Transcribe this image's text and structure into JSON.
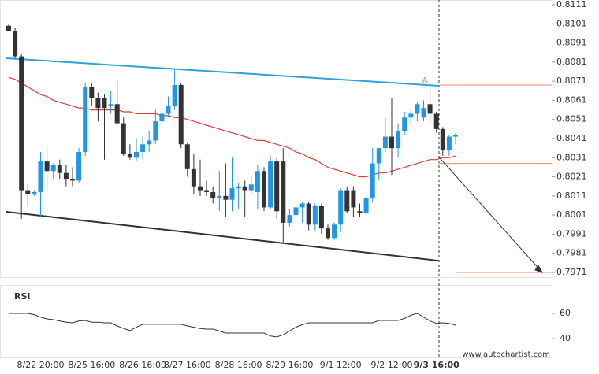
{
  "chart_data": [
    {
      "type": "candlestick",
      "categories": [
        null,
        null,
        null,
        null,
        null,
        "8/22 20:00",
        null,
        null,
        null,
        null,
        null,
        null,
        null,
        "8/25 16:00",
        null,
        null,
        null,
        null,
        null,
        null,
        null,
        "8/26 16:00",
        null,
        null,
        null,
        null,
        null,
        null,
        "8/27 16:00",
        null,
        null,
        null,
        null,
        null,
        null,
        null,
        "8/28 16:00",
        null,
        null,
        null,
        null,
        null,
        null,
        null,
        "8/29 16:00",
        null,
        null,
        null,
        null,
        null,
        null,
        null,
        "9/1 12:00",
        null,
        null,
        null,
        null,
        null,
        null,
        null,
        "9/2 12:00",
        null,
        null,
        null,
        null,
        null,
        null,
        "9/3 16:00",
        null,
        null,
        null
      ],
      "open": [
        0.81,
        0.8097,
        0.8084,
        0.8014,
        0.8012,
        0.8013,
        0.8029,
        0.8024,
        0.8027,
        0.8023,
        0.802,
        0.8019,
        0.8034,
        0.8068,
        0.8062,
        0.8062,
        0.8058,
        0.8059,
        0.8049,
        0.8033,
        0.8031,
        0.8034,
        0.8038,
        0.804,
        0.805,
        0.8054,
        0.8058,
        0.8069,
        0.8038,
        0.8025,
        0.8016,
        0.8014,
        0.8013,
        0.801,
        0.8011,
        0.8009,
        0.8015,
        0.8016,
        0.8014,
        0.8013,
        0.8024,
        0.8005,
        0.8029,
        0.8029,
        0.7997,
        0.8001,
        0.8005,
        0.8007,
        0.7996,
        0.8006,
        0.7994,
        0.7989,
        0.7996,
        0.8014,
        0.8014,
        0.8003,
        0.8002,
        0.801,
        0.8028,
        0.8036,
        0.8042,
        0.8036,
        0.8045,
        0.8052,
        0.8054,
        0.8052,
        0.8059,
        0.8054,
        0.8046,
        0.8035,
        0.8042
      ],
      "high": [
        0.8101,
        0.8099,
        0.8085,
        0.8017,
        0.8014,
        0.8034,
        0.8037,
        0.8028,
        0.803,
        0.8027,
        0.8026,
        0.8036,
        0.807,
        0.807,
        0.8065,
        0.8064,
        0.8066,
        0.8071,
        0.8052,
        0.8038,
        0.8041,
        0.8042,
        0.8045,
        0.8056,
        0.8062,
        0.8063,
        0.8077,
        0.807,
        0.8039,
        0.8033,
        0.803,
        0.8019,
        0.8016,
        0.8024,
        0.8028,
        0.8031,
        0.8018,
        0.8019,
        0.8021,
        0.8027,
        0.8026,
        0.8032,
        0.8031,
        0.8036,
        0.8004,
        0.8007,
        0.8008,
        0.8008,
        0.8007,
        0.8007,
        0.7996,
        0.7997,
        0.8015,
        0.8016,
        0.8016,
        0.8007,
        0.8013,
        0.8036,
        0.8036,
        0.8052,
        0.8062,
        0.8049,
        0.8055,
        0.8056,
        0.806,
        0.8061,
        0.8068,
        0.8055,
        0.8047,
        0.8043,
        0.8044
      ],
      "low": [
        0.8097,
        0.8083,
        0.7999,
        0.8006,
        0.8011,
        0.8,
        0.8014,
        0.802,
        0.802,
        0.8016,
        0.8016,
        0.8018,
        0.8032,
        0.8058,
        0.805,
        0.803,
        0.8054,
        0.8048,
        0.8032,
        0.803,
        0.8029,
        0.803,
        0.8034,
        0.8038,
        0.8049,
        0.8052,
        0.8056,
        0.8036,
        0.8021,
        0.8012,
        0.8011,
        0.8011,
        0.8007,
        0.8003,
        0.8,
        0.8003,
        0.8004,
        0.8,
        0.8012,
        0.8004,
        0.8003,
        0.8004,
        0.7999,
        0.7986,
        0.7995,
        0.7993,
        0.7997,
        0.7993,
        0.7993,
        0.7991,
        0.7988,
        0.7988,
        0.7992,
        0.8002,
        0.8,
        0.8,
        0.8001,
        0.8008,
        0.8019,
        0.8034,
        0.8022,
        0.8031,
        0.8043,
        0.8048,
        0.805,
        0.805,
        0.8049,
        0.8044,
        0.8032,
        0.8032,
        0.8038
      ],
      "close": [
        0.8097,
        0.8084,
        0.8014,
        0.8012,
        0.8013,
        0.8029,
        0.8024,
        0.8027,
        0.8023,
        0.802,
        0.8019,
        0.8034,
        0.8068,
        0.8062,
        0.8057,
        0.8057,
        0.8059,
        0.8049,
        0.8033,
        0.8031,
        0.8034,
        0.8038,
        0.804,
        0.805,
        0.8054,
        0.8058,
        0.8069,
        0.8038,
        0.8025,
        0.8016,
        0.8014,
        0.8013,
        0.801,
        0.8011,
        0.8009,
        0.8015,
        0.8016,
        0.8014,
        0.8017,
        0.8024,
        0.8005,
        0.8029,
        0.8003,
        0.7997,
        0.8001,
        0.8005,
        0.8007,
        0.7996,
        0.8006,
        0.7994,
        0.7989,
        0.7996,
        0.8014,
        0.8003,
        0.8005,
        0.8002,
        0.801,
        0.8028,
        0.8036,
        0.8042,
        0.8036,
        0.8045,
        0.8052,
        0.8054,
        0.8059,
        0.8057,
        0.8054,
        0.8046,
        0.8035,
        0.8042,
        0.8043
      ],
      "up_color": "#2196e6",
      "down_color": "#333333",
      "ma": {
        "color": "#e53935",
        "values": [
          0.8073,
          0.8072,
          0.807,
          0.8068,
          0.8066,
          0.8064,
          0.8063,
          0.8061,
          0.806,
          0.8059,
          0.8058,
          0.8057,
          0.8057,
          0.8056,
          0.8056,
          0.8056,
          0.8056,
          0.8056,
          0.8055,
          0.8055,
          0.8054,
          0.8054,
          0.8054,
          0.8054,
          0.8053,
          0.8053,
          0.8052,
          0.8052,
          0.8051,
          0.805,
          0.8049,
          0.8048,
          0.8047,
          0.8046,
          0.8045,
          0.8044,
          0.8043,
          0.8042,
          0.8041,
          0.804,
          0.804,
          0.8039,
          0.8038,
          0.8037,
          0.8036,
          0.8034,
          0.8033,
          0.8031,
          0.803,
          0.8028,
          0.8026,
          0.8025,
          0.8024,
          0.8023,
          0.8022,
          0.8021,
          0.8021,
          0.8022,
          0.8023,
          0.8023,
          0.8024,
          0.8025,
          0.8026,
          0.8027,
          0.8028,
          0.8029,
          0.803,
          0.803,
          0.8031,
          0.8031,
          0.8032
        ]
      },
      "upper_line": {
        "color": "#2ba3d8",
        "values": [
          0.8083,
          0.80686
        ]
      },
      "lower_line": {
        "color": "#333333",
        "values": [
          0.80027,
          0.79771
        ]
      },
      "annotation": "A",
      "levels": [
        0.8069,
        0.8028
      ],
      "target": 0.7971,
      "level_color": "#f08a5d",
      "ylim": [
        0.7971,
        0.8111
      ],
      "yticks": [
        0.8111,
        0.8101,
        0.8091,
        0.8081,
        0.8071,
        0.8061,
        0.8051,
        0.8041,
        0.8031,
        0.8021,
        0.8011,
        0.8001,
        0.7991,
        0.7981,
        0.7971
      ]
    },
    {
      "type": "line",
      "title": "RSI",
      "color": "#333333",
      "values": [
        60,
        60,
        60,
        60,
        59,
        57,
        55.6,
        55,
        54,
        53,
        52.5,
        54,
        54.4,
        53,
        53,
        52.5,
        52.5,
        50,
        48,
        46.3,
        49,
        51.3,
        51.3,
        51.3,
        51.3,
        51.3,
        51.3,
        51.3,
        50,
        49,
        48,
        47.5,
        47.5,
        46,
        44.4,
        44.4,
        44.4,
        44.4,
        44.4,
        44.4,
        44.4,
        42,
        41.3,
        43,
        46,
        49,
        51,
        52.5,
        52.5,
        52.5,
        52.5,
        52.5,
        52.5,
        52.5,
        52.5,
        52.5,
        52.5,
        52.5,
        54.4,
        54.4,
        54.4,
        54.4,
        56,
        58.5,
        60,
        57,
        54,
        52,
        52.5,
        52,
        50.6
      ],
      "ylim": [
        28,
        78
      ],
      "yticks": [
        60,
        40
      ]
    }
  ],
  "footer": "www.autochartist.com"
}
